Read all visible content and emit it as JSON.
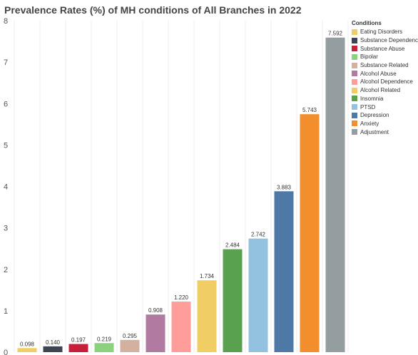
{
  "chart_data": {
    "type": "bar",
    "title": "Prevalence Rates (%) of MH conditions of All Branches in 2022",
    "xlabel": "",
    "ylabel": "",
    "ylim": [
      0,
      8
    ],
    "yticks": [
      0,
      1,
      2,
      3,
      4,
      5,
      6,
      7,
      8
    ],
    "grid": "vertical",
    "legend_title": "Conditions",
    "legend_position": "right",
    "categories": [
      "Eating Disorders",
      "Substance Dependence",
      "Substance Abuse",
      "Bipolar",
      "Substance Related",
      "Alcohol Abuse",
      "Alcohol Dependence",
      "Alcohol Related",
      "Insomnia",
      "PTSD",
      "Depression",
      "Anxiety",
      "Adjustment"
    ],
    "values": [
      0.098,
      0.14,
      0.197,
      0.219,
      0.295,
      0.908,
      1.22,
      1.734,
      2.484,
      2.742,
      3.883,
      5.743,
      7.592
    ],
    "value_labels": [
      "0.098",
      "0.140",
      "0.197",
      "0.219",
      "0.295",
      "0.908",
      "1.220",
      "1.734",
      "2.484",
      "2.742",
      "3.883",
      "5.743",
      "7.592"
    ],
    "colors": [
      "#F1CE63",
      "#3F4451",
      "#C8203B",
      "#8CD17D",
      "#D4B0A0",
      "#B07AA1",
      "#FF9D9A",
      "#F1CE63",
      "#59A14F",
      "#93C1E0",
      "#4E79A7",
      "#F28E2B",
      "#949D9F"
    ]
  }
}
